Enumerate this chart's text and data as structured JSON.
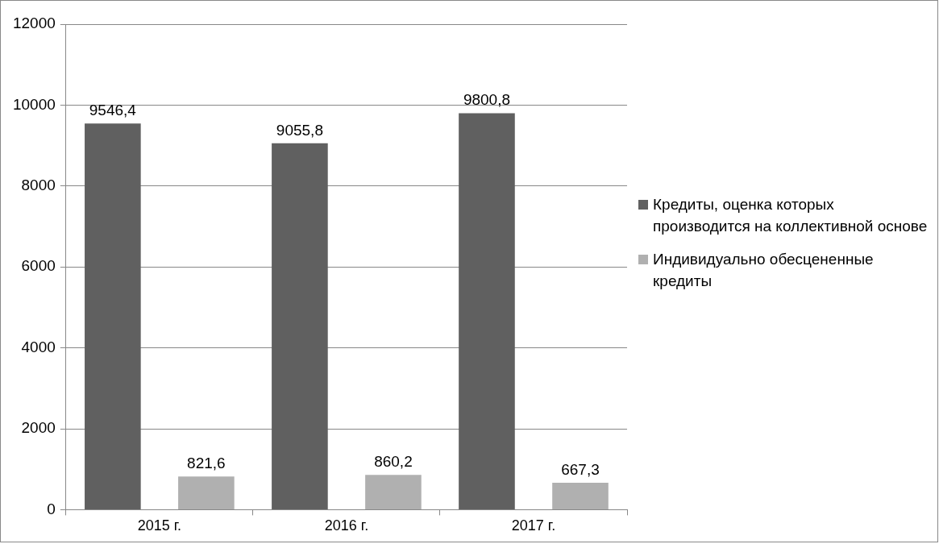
{
  "chart_data": {
    "type": "bar",
    "categories": [
      "2015 г.",
      "2016 г.",
      "2017 г."
    ],
    "series": [
      {
        "name": "Кредиты, оценка которых производится на коллективной основе",
        "color": "#606060",
        "values": [
          9546.4,
          9055.8,
          9800.8
        ],
        "value_labels": [
          "9546,4",
          "9055,8",
          "9800,8"
        ]
      },
      {
        "name": "Индивидуально обесцененные кредиты",
        "color": "#b0b0b0",
        "values": [
          821.6,
          860.2,
          667.3
        ],
        "value_labels": [
          "821,6",
          "860,2",
          "667,3"
        ]
      }
    ],
    "ylim": [
      0,
      12000
    ],
    "yticks": [
      0,
      2000,
      4000,
      6000,
      8000,
      10000,
      12000
    ],
    "grid": "y",
    "legend": "right"
  }
}
